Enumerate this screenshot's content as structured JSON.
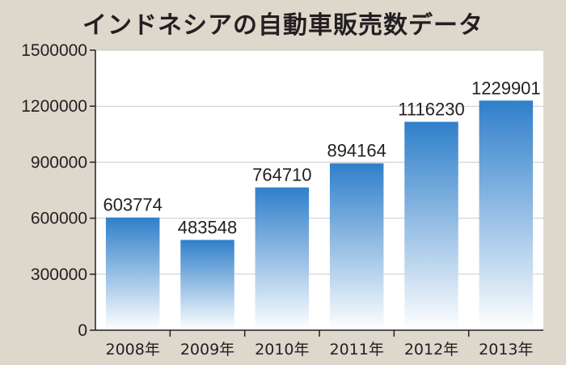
{
  "chart_data": {
    "type": "bar",
    "title": "インドネシアの自動車販売数データ",
    "categories": [
      "2008年",
      "2009年",
      "2010年",
      "2011年",
      "2012年",
      "2013年"
    ],
    "values": [
      603774,
      483548,
      764710,
      894164,
      1116230,
      1229901
    ],
    "data_labels": [
      "603774",
      "483548",
      "764710",
      "894164",
      "1116230",
      "1229901"
    ],
    "yticks": [
      0,
      300000,
      600000,
      900000,
      1200000,
      1500000
    ],
    "ytick_labels": [
      "0",
      "300000",
      "600000",
      "900000",
      "1200000",
      "1500000"
    ],
    "ylim": [
      0,
      1500000
    ],
    "grid": true,
    "bar_color_top": "#2f7fca",
    "bar_color_bottom": "#ffffff",
    "plot_background": "#ffffff",
    "page_background": "#ddd7cc",
    "grid_color": "#c9c9c9"
  }
}
